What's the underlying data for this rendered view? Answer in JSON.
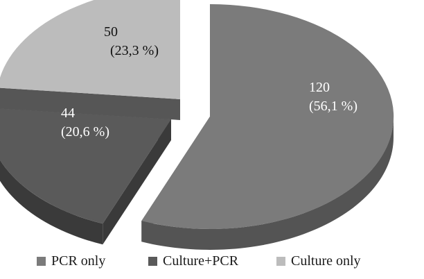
{
  "chart_data": {
    "type": "pie",
    "style": "3d-exploded",
    "slices": [
      {
        "name": "PCR only",
        "value": 120,
        "percent_label": "(56,1 %)",
        "color": "#7b7b7b",
        "side": "#545454"
      },
      {
        "name": "Culture+PCR",
        "value": 44,
        "percent_label": "(20,6 %)",
        "color": "#5a5a5a",
        "side": "#3a3a3a"
      },
      {
        "name": "Culture only",
        "value": 50,
        "percent_label": "(23,3 %)",
        "color": "#bcbcbc",
        "side": "#565656"
      }
    ],
    "legend": {
      "position": "bottom",
      "items": [
        "PCR only",
        "Culture+PCR",
        "Culture only"
      ]
    }
  }
}
